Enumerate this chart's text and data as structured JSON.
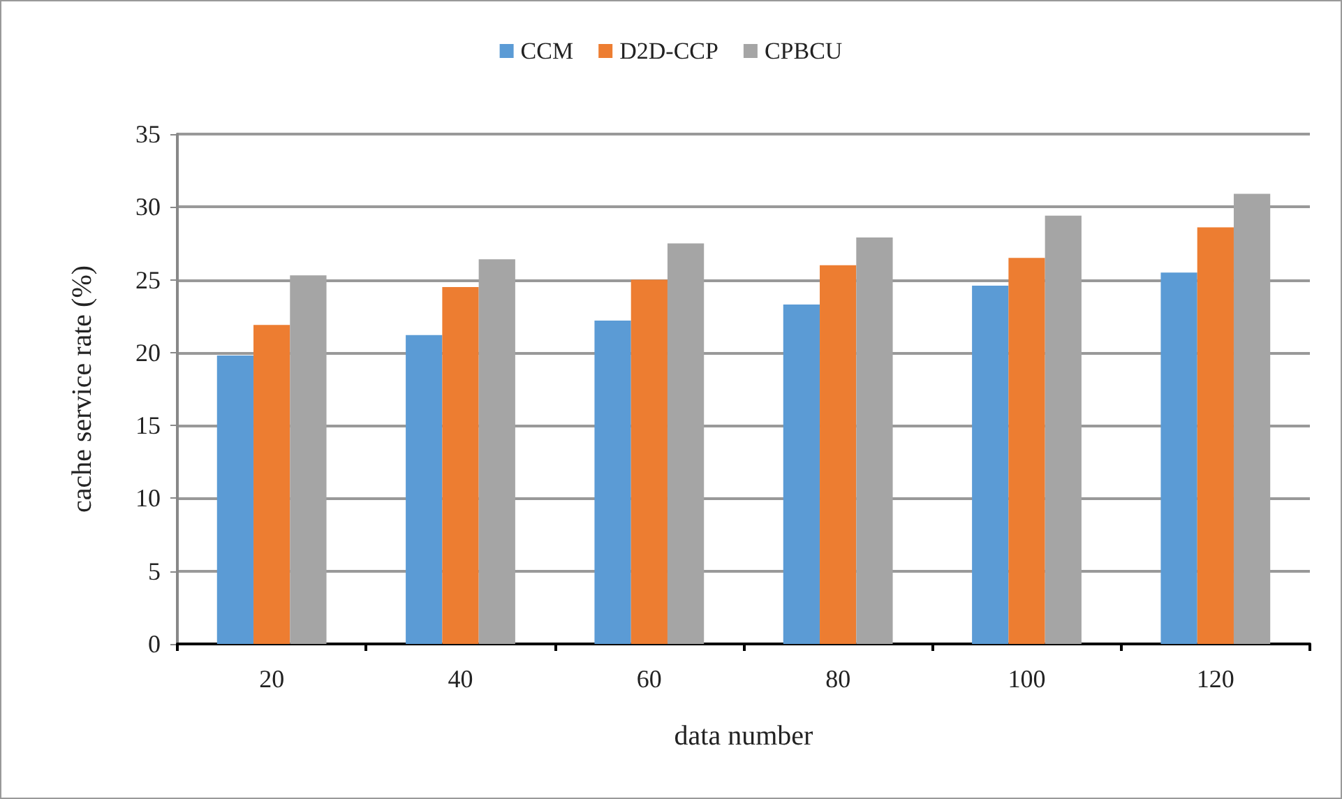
{
  "chart_data": {
    "type": "bar",
    "xlabel": "data number",
    "ylabel": "cache service rate (%)",
    "categories": [
      "20",
      "40",
      "60",
      "80",
      "100",
      "120"
    ],
    "series": [
      {
        "name": "CCM",
        "color": "#5b9bd5",
        "values": [
          19.8,
          21.2,
          22.2,
          23.3,
          24.6,
          25.5
        ]
      },
      {
        "name": "D2D-CCP",
        "color": "#ed7d31",
        "values": [
          21.9,
          24.5,
          25.0,
          26.0,
          26.5,
          28.6
        ]
      },
      {
        "name": "CPBCU",
        "color": "#a5a5a5",
        "values": [
          25.3,
          26.4,
          27.5,
          27.9,
          29.4,
          30.9
        ]
      }
    ],
    "ylim": [
      0,
      35
    ],
    "yticks": [
      0,
      5,
      10,
      15,
      20,
      25,
      30,
      35
    ],
    "grid": "y",
    "legend": "top"
  }
}
